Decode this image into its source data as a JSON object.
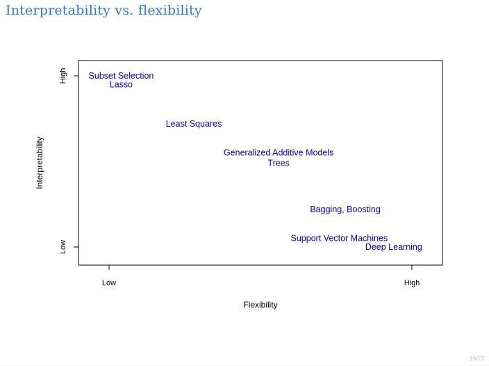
{
  "slide": {
    "title": "Interpretability vs. flexibility",
    "page_number": "16/22"
  },
  "colors": {
    "title": "#2a7ad6",
    "points": "#0000cc",
    "axis": "#000000"
  },
  "chart_data": {
    "type": "scatter",
    "title": "",
    "xlabel": "Flexibility",
    "ylabel": "Interpretability",
    "xlim": [
      0,
      1
    ],
    "ylim": [
      0,
      1
    ],
    "x_ticks": [
      {
        "value": 0,
        "label": "Low"
      },
      {
        "value": 1,
        "label": "High"
      }
    ],
    "y_ticks": [
      {
        "value": 0,
        "label": "Low"
      },
      {
        "value": 1,
        "label": "High"
      }
    ],
    "grid": false,
    "legend": "none",
    "points": [
      {
        "label": "Subset Selection",
        "x": 0.04,
        "y": 1.0
      },
      {
        "label": "Lasso",
        "x": 0.04,
        "y": 0.95
      },
      {
        "label": "Least Squares",
        "x": 0.28,
        "y": 0.72
      },
      {
        "label": "Generalized Additive Models",
        "x": 0.56,
        "y": 0.55
      },
      {
        "label": "Trees",
        "x": 0.56,
        "y": 0.49
      },
      {
        "label": "Bagging, Boosting",
        "x": 0.78,
        "y": 0.22
      },
      {
        "label": "Support Vector Machines",
        "x": 0.76,
        "y": 0.05
      },
      {
        "label": "Deep Learning",
        "x": 0.94,
        "y": 0.0
      }
    ]
  }
}
